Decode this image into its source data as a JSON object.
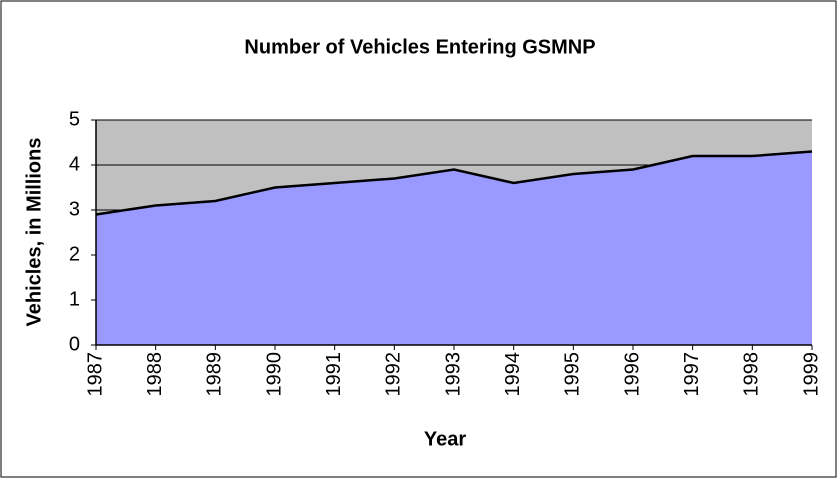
{
  "chart_data": {
    "type": "area",
    "title": "Number of Vehicles Entering GSMNP",
    "x_label": "Year",
    "y_label": "Vehicles, in Millions",
    "categories": [
      "1987",
      "1988",
      "1989",
      "1990",
      "1991",
      "1992",
      "1993",
      "1994",
      "1995",
      "1996",
      "1997",
      "1998",
      "1999"
    ],
    "values": [
      2.9,
      3.1,
      3.2,
      3.5,
      3.6,
      3.7,
      3.9,
      3.6,
      3.8,
      3.9,
      4.2,
      4.2,
      4.3
    ],
    "color": "#9999ff",
    "ylim": [
      0,
      5
    ],
    "yticks": [
      0,
      1,
      2,
      3,
      4,
      5
    ],
    "grid": true
  }
}
